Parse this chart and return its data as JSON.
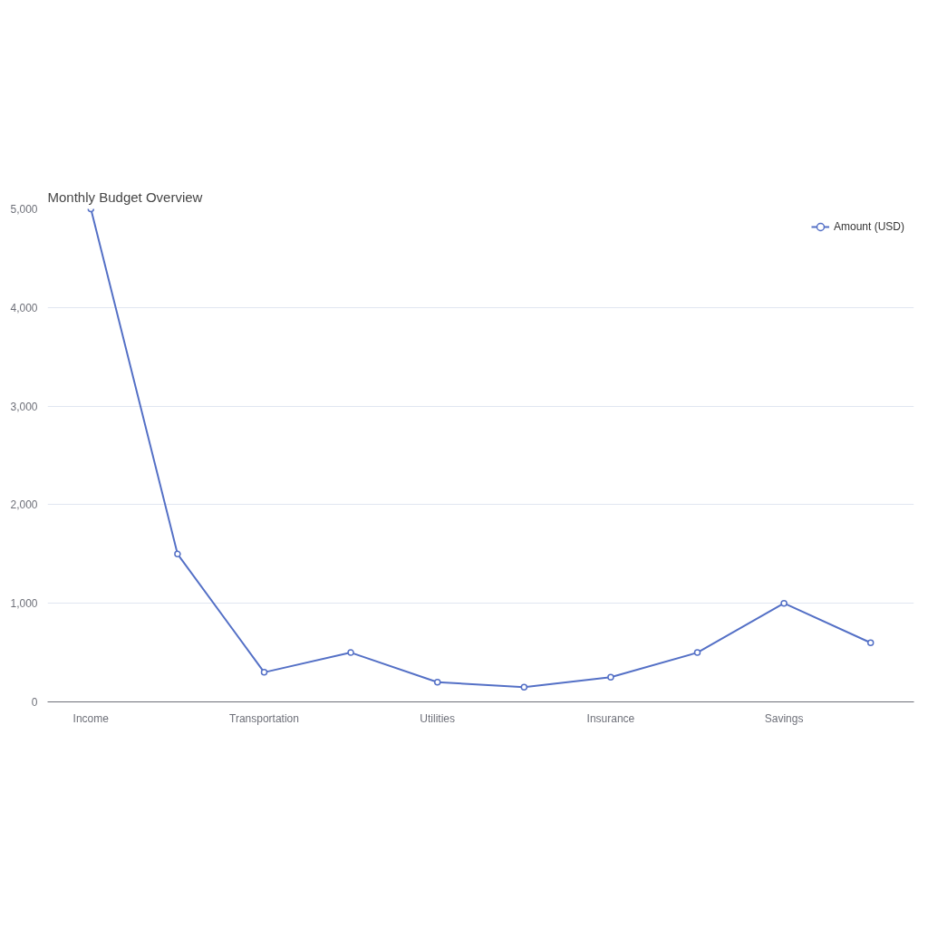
{
  "chart_data": {
    "type": "line",
    "title": "Monthly Budget Overview",
    "categories": [
      "Income",
      null,
      "Transportation",
      null,
      "Utilities",
      null,
      "Insurance",
      null,
      "Savings",
      null
    ],
    "series": [
      {
        "name": "Amount (USD)",
        "color": "#5470c6",
        "values": [
          5000,
          1500,
          300,
          500,
          200,
          150,
          250,
          500,
          1000,
          600
        ]
      }
    ],
    "ylim": [
      0,
      5000
    ],
    "yticks": [
      0,
      {
        "value": 1000,
        "label": "1,000"
      },
      {
        "value": 2000,
        "label": "2,000"
      },
      {
        "value": 3000,
        "label": "3,000"
      },
      {
        "value": 4000,
        "label": "4,000"
      },
      {
        "value": 5000,
        "label": "5,000"
      }
    ],
    "grid": "y",
    "legend": "top right",
    "marker": "circle",
    "line_style": "solid"
  }
}
